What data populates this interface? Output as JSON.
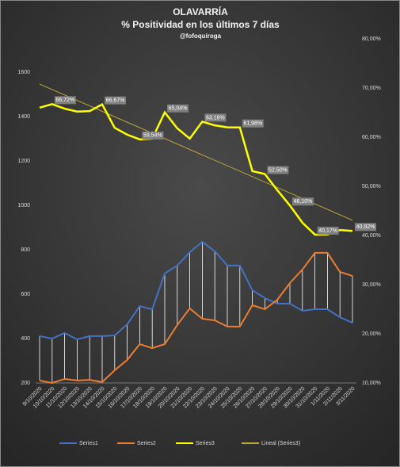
{
  "chart_data": {
    "type": "line",
    "title": "OLAVARRÍA",
    "subtitle": "% Positividad en los últimos 7 días",
    "annotation": "@fofoquiroga",
    "categories": [
      "9/10/2020",
      "10/10/2020",
      "11/10/2020",
      "12/10/2020",
      "13/10/2020",
      "14/10/2020",
      "15/10/2020",
      "16/10/2020",
      "17/10/2020",
      "18/10/2020",
      "19/10/2020",
      "20/10/2020",
      "21/10/2020",
      "22/10/2020",
      "23/10/2020",
      "24/10/2020",
      "25/10/2020",
      "26/10/2020",
      "27/10/2020",
      "28/10/2020",
      "29/10/2020",
      "30/10/2020",
      "31/10/2020",
      "1/11/2020",
      "2/11/2020",
      "3/11/2020"
    ],
    "series": [
      {
        "name": "Series1",
        "color": "#4472c4",
        "values": [
          411,
          400,
          425,
          396,
          411,
          411,
          414,
          464,
          546,
          532,
          693,
          729,
          789,
          836,
          793,
          729,
          729,
          618,
          582,
          557,
          557,
          525,
          532,
          532,
          496,
          471
        ]
      },
      {
        "name": "Series2",
        "color": "#ed7d31",
        "values": [
          211,
          200,
          218,
          211,
          214,
          204,
          257,
          304,
          375,
          357,
          375,
          461,
          536,
          489,
          482,
          454,
          454,
          550,
          532,
          575,
          650,
          711,
          786,
          786,
          700,
          682
        ]
      },
      {
        "name": "Series3",
        "color": "#ffff00",
        "axis": "y2",
        "values": [
          66.0,
          66.72,
          65.8,
          65.2,
          65.3,
          66.67,
          61.9,
          60.5,
          59.54,
          59.7,
          65.04,
          61.8,
          59.7,
          63.16,
          62.4,
          62.0,
          61.98,
          53.1,
          52.5,
          49.2,
          46.1,
          42.6,
          40.17,
          40.2,
          41.1,
          40.92
        ],
        "value_labels": [
          null,
          "66,72%",
          null,
          null,
          null,
          "66,67%",
          null,
          null,
          "59,54%",
          null,
          "65,04%",
          null,
          null,
          "63,16%",
          null,
          null,
          "61,98%",
          null,
          "52,50%",
          null,
          "46,10%",
          null,
          "40,17%",
          null,
          null,
          "40,92%"
        ]
      }
    ],
    "trendline": {
      "name": "Lineal (Series3)",
      "color": "#bfa838",
      "axis": "y2",
      "values": [
        70.8,
        43.1
      ]
    },
    "ylim": [
      200,
      1750
    ],
    "yticks": [
      200,
      400,
      600,
      800,
      1000,
      1200,
      1400,
      1600
    ],
    "y2lim": [
      10,
      80
    ],
    "y2ticks": [
      {
        "value": 10,
        "label": "10,00%"
      },
      {
        "value": 20,
        "label": "20,00%"
      },
      {
        "value": 30,
        "label": "30,00%"
      },
      {
        "value": 40,
        "label": "40,00%"
      },
      {
        "value": 50,
        "label": "50,00%"
      },
      {
        "value": 60,
        "label": "60,00%"
      },
      {
        "value": 70,
        "label": "70,00%"
      },
      {
        "value": 80,
        "label": "80,00%"
      }
    ],
    "legend": "bottom"
  }
}
